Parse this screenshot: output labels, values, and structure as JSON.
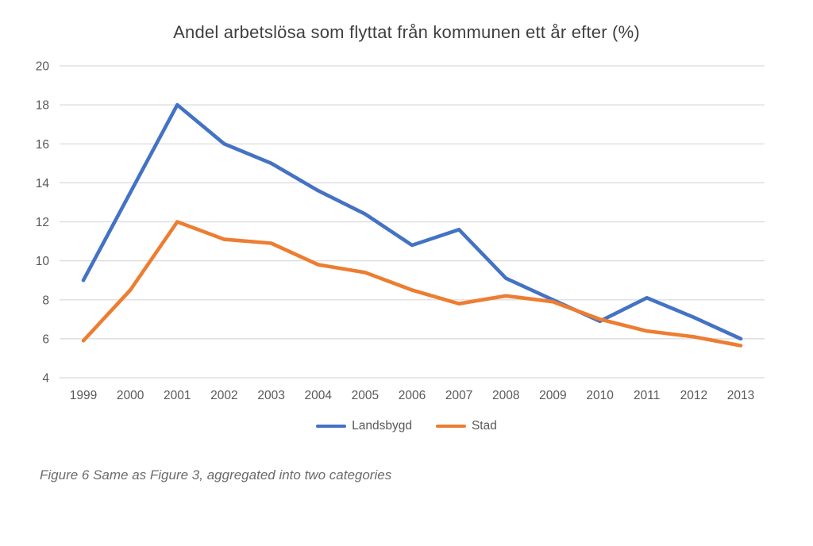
{
  "caption": "Figure 6 Same as Figure 3, aggregated into two categories",
  "chart_data": {
    "type": "line",
    "title": "Andel arbetslösa som flyttat från kommunen ett år efter (%)",
    "x": [
      "1999",
      "2000",
      "2001",
      "2002",
      "2003",
      "2004",
      "2005",
      "2006",
      "2007",
      "2008",
      "2009",
      "2010",
      "2011",
      "2012",
      "2013"
    ],
    "series": [
      {
        "name": "Landsbygd",
        "color": "#4472C4",
        "values": [
          9.0,
          13.5,
          18.0,
          16.0,
          15.0,
          13.6,
          12.4,
          10.8,
          11.6,
          9.1,
          8.0,
          6.9,
          8.1,
          7.1,
          6.0
        ]
      },
      {
        "name": "Stad",
        "color": "#ED7D31",
        "values": [
          5.9,
          8.5,
          12.0,
          11.1,
          10.9,
          9.8,
          9.4,
          8.5,
          7.8,
          8.2,
          7.9,
          7.0,
          6.4,
          6.1,
          5.65
        ]
      }
    ],
    "ylim": [
      4,
      20
    ],
    "ytick_step": 2,
    "yticks": [
      "4",
      "6",
      "8",
      "10",
      "12",
      "14",
      "16",
      "18",
      "20"
    ],
    "grid": true,
    "legend_position": "bottom",
    "axis_label_color": "#595959",
    "grid_color": "#d9d9d9"
  }
}
